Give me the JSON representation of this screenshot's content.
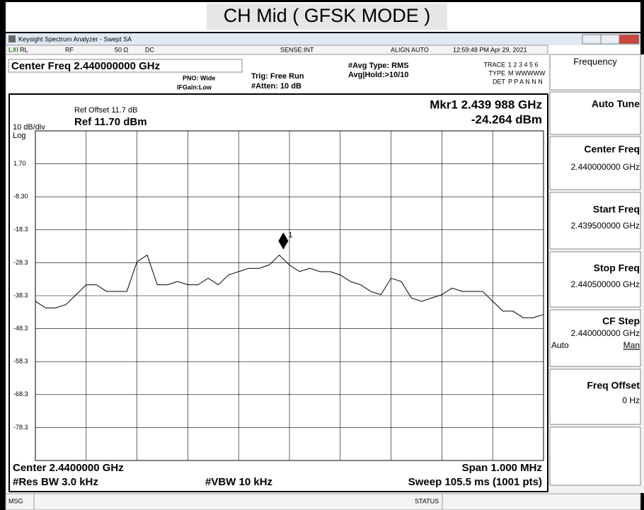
{
  "title": "CH Mid ( GFSK MODE )",
  "window": {
    "title": "Keysight Spectrum Analyzer - Swept SA"
  },
  "status_bar": [
    "RL",
    "RF",
    "50 Ω",
    "DC",
    "SENSE:INT",
    "ALIGN AUTO",
    "12:59:48 PM Apr 29, 2021"
  ],
  "settings": {
    "center_freq": "Center Freq 2.440000000 GHz",
    "pno": "PNO: Wide",
    "ifgain": "IFGain:Low",
    "trig": "Trig: Free Run",
    "atten": "#Atten: 10 dB",
    "avg_type": "#Avg Type: RMS",
    "avg_hold": "Avg|Hold:>10/10",
    "trace": "TRACE",
    "trace_vals": "1 2 3 4 5 6",
    "type": "TYPE",
    "type_vals": "M WWWWW",
    "det": "DET",
    "det_vals": "P P A N N N"
  },
  "chart_data": {
    "type": "line",
    "ref_offset": "Ref Offset 11.7 dB",
    "scale": "10 dB/div",
    "ref_level": "Ref 11.70 dBm",
    "scale_type": "Log",
    "marker_freq": "Mkr1 2.439 988 GHz",
    "marker_level": "-24.264 dBm",
    "marker": {
      "x": 2.439988,
      "y": -24.264,
      "label": "1"
    },
    "center": "Center 2.4400000 GHz",
    "span": "Span 1.000 MHz",
    "rbw": "#Res BW 3.0 kHz",
    "vbw": "#VBW 10 kHz",
    "sweep": "Sweep  105.5 ms (1001 pts)",
    "x": [
      2.4395,
      2.43952,
      2.43954,
      2.43956,
      2.43958,
      2.4396,
      2.43962,
      2.43964,
      2.43966,
      2.43968,
      2.4397,
      2.43972,
      2.43974,
      2.43976,
      2.43978,
      2.4398,
      2.43982,
      2.43984,
      2.43986,
      2.43988,
      2.4399,
      2.43992,
      2.43994,
      2.43996,
      2.43998,
      2.44,
      2.44002,
      2.44004,
      2.44006,
      2.44008,
      2.4401,
      2.44012,
      2.44014,
      2.44016,
      2.44018,
      2.4402,
      2.44022,
      2.44024,
      2.44026,
      2.44028,
      2.4403,
      2.44032,
      2.44034,
      2.44036,
      2.44038,
      2.4404,
      2.44042,
      2.44044,
      2.44046,
      2.44048,
      2.4405
    ],
    "series": [
      {
        "color": "#000000",
        "values": [
          -40,
          -42,
          -42,
          -41,
          -38,
          -35,
          -35,
          -37,
          -37,
          -37,
          -28,
          -26,
          -35,
          -35,
          -34,
          -35,
          -35,
          -33,
          -35,
          -32,
          -31,
          -30,
          -30,
          -29,
          -26,
          -29,
          -31,
          -30,
          -31,
          -31,
          -32,
          -34,
          -35,
          -37,
          -38,
          -33,
          -34,
          -39,
          -40,
          -39,
          -38,
          -36,
          -37,
          -37,
          -37,
          -40,
          -43,
          -43,
          -45,
          -45,
          -44
        ]
      }
    ],
    "xlim": [
      2.4395,
      2.4405
    ],
    "ylim": [
      -88.3,
      11.7
    ],
    "yticks": [
      {
        "value": 1.7,
        "label": "1.70"
      },
      {
        "value": -8.3,
        "label": "-8.30"
      },
      -18.3,
      -28.3,
      -38.3,
      -48.3,
      -58.3,
      -68.3,
      -78.3
    ],
    "grid": {
      "x_divisions": 10
    }
  },
  "menu": {
    "title": "Frequency",
    "auto_tune": "Auto Tune",
    "center_freq": "Center Freq",
    "center_freq_val": "2.440000000 GHz",
    "start_freq": "Start Freq",
    "start_freq_val": "2.439500000 GHz",
    "stop_freq": "Stop Freq",
    "stop_freq_val": "2.440500000 GHz",
    "cf_step": "CF Step",
    "cf_step_val": "2.440000000 GHz",
    "auto": "Auto",
    "man": "Man",
    "freq_offset": "Freq Offset",
    "freq_offset_val": "0 Hz"
  },
  "footer": {
    "msg": "MSG",
    "status": "STATUS"
  }
}
